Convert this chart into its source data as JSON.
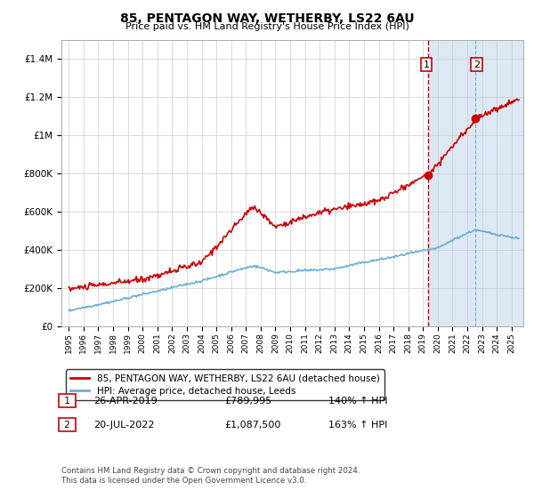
{
  "title": "85, PENTAGON WAY, WETHERBY, LS22 6AU",
  "subtitle": "Price paid vs. HM Land Registry's House Price Index (HPI)",
  "legend_line1": "85, PENTAGON WAY, WETHERBY, LS22 6AU (detached house)",
  "legend_line2": "HPI: Average price, detached house, Leeds",
  "annotation1_label": "1",
  "annotation1_date": "26-APR-2019",
  "annotation1_price": "£789,995",
  "annotation1_hpi": "140% ↑ HPI",
  "annotation2_label": "2",
  "annotation2_date": "20-JUL-2022",
  "annotation2_price": "£1,087,500",
  "annotation2_hpi": "163% ↑ HPI",
  "footer": "Contains HM Land Registry data © Crown copyright and database right 2024.\nThis data is licensed under the Open Government Licence v3.0.",
  "hpi_color": "#6baed6",
  "price_color": "#cc0000",
  "annotation_box_color": "#cc0000",
  "highlight_color": "#dce9f5",
  "vline1_color": "#cc0000",
  "vline2_color": "#6baed6",
  "grid_color": "#cccccc",
  "ylim": [
    0,
    1500000
  ],
  "yticks": [
    0,
    200000,
    400000,
    600000,
    800000,
    1000000,
    1200000,
    1400000
  ],
  "xlim_start": 1994.5,
  "xlim_end": 2025.8,
  "marker1_x": 2019.32,
  "marker1_y": 789995,
  "marker2_x": 2022.55,
  "marker2_y": 1087500
}
